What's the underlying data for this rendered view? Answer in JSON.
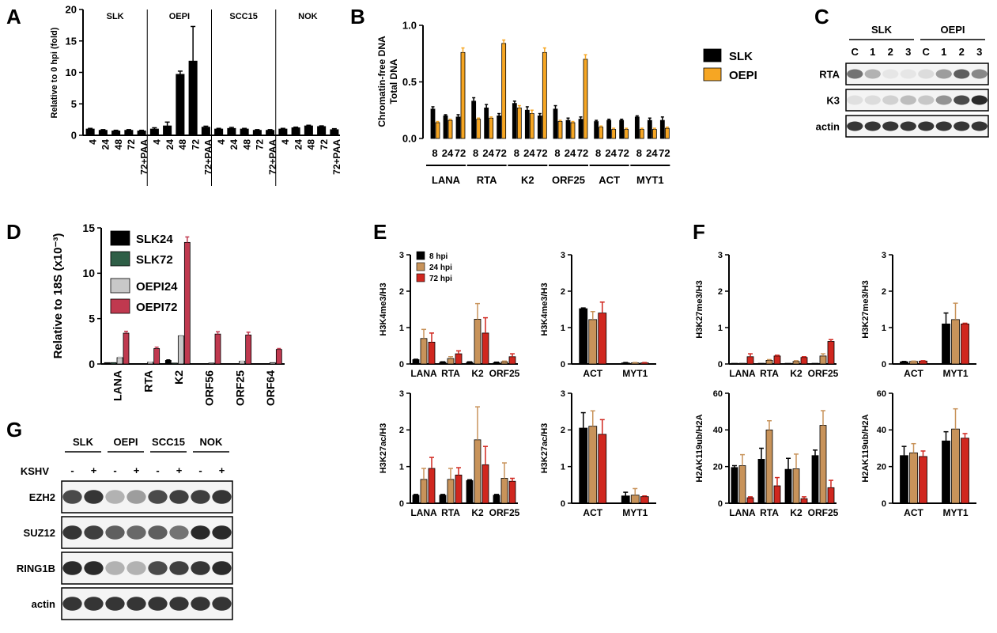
{
  "panel_labels": {
    "a": "A",
    "b": "B",
    "c": "C",
    "d": "D",
    "e": "E",
    "f": "F",
    "g": "G"
  },
  "chart_data": [
    {
      "id": "A",
      "type": "bar",
      "ylabel": "Relative to 0 hpi (fold)",
      "ylim": [
        0,
        20
      ],
      "yticks": [
        0,
        5,
        10,
        15,
        20
      ],
      "groups": [
        "SLK",
        "OEPI",
        "SCC15",
        "NOK"
      ],
      "categories": [
        "4",
        "24",
        "48",
        "72",
        "72+PAA"
      ],
      "series": [
        {
          "group": "SLK",
          "values": [
            1.0,
            0.8,
            0.7,
            0.8,
            0.7
          ],
          "errors": [
            0.1,
            0.1,
            0.1,
            0.1,
            0.1
          ]
        },
        {
          "group": "OEPI",
          "values": [
            1.0,
            1.5,
            9.7,
            11.8,
            1.3
          ],
          "errors": [
            0.2,
            0.6,
            0.5,
            5.5,
            0.15
          ]
        },
        {
          "group": "SCC15",
          "values": [
            1.0,
            1.1,
            1.0,
            0.8,
            0.8
          ],
          "errors": [
            0.1,
            0.15,
            0.1,
            0.1,
            0.1
          ]
        },
        {
          "group": "NOK",
          "values": [
            1.0,
            1.2,
            1.5,
            1.4,
            0.9
          ],
          "errors": [
            0.1,
            0.1,
            0.1,
            0.1,
            0.15
          ]
        }
      ],
      "colors": {
        "bar": "#000000"
      }
    },
    {
      "id": "B",
      "type": "bar",
      "ylabel": [
        "Chromatin-free DNA",
        "Total DNA"
      ],
      "ylim": [
        0,
        1.0
      ],
      "yticks": [
        "0.0",
        "0.5",
        "1.0"
      ],
      "genes": [
        "LANA",
        "RTA",
        "K2",
        "ORF25",
        "ACT",
        "MYT1"
      ],
      "timepoints": [
        "8",
        "24",
        "72"
      ],
      "series": [
        {
          "name": "SLK",
          "color": "#000000",
          "values": [
            [
              0.26,
              0.2,
              0.19
            ],
            [
              0.33,
              0.27,
              0.2
            ],
            [
              0.31,
              0.25,
              0.2
            ],
            [
              0.26,
              0.16,
              0.17
            ],
            [
              0.15,
              0.16,
              0.16
            ],
            [
              0.19,
              0.16,
              0.16
            ]
          ],
          "errors": [
            [
              0.02,
              0.01,
              0.02
            ],
            [
              0.03,
              0.03,
              0.02
            ],
            [
              0.02,
              0.03,
              0.02
            ],
            [
              0.03,
              0.02,
              0.02
            ],
            [
              0.01,
              0.01,
              0.01
            ],
            [
              0.01,
              0.02,
              0.03
            ]
          ]
        },
        {
          "name": "OEPI",
          "color": "#F6A623",
          "values": [
            [
              0.14,
              0.16,
              0.76
            ],
            [
              0.17,
              0.18,
              0.84
            ],
            [
              0.27,
              0.22,
              0.76
            ],
            [
              0.15,
              0.14,
              0.7
            ],
            [
              0.1,
              0.08,
              0.08
            ],
            [
              0.08,
              0.08,
              0.09
            ]
          ],
          "errors": [
            [
              0.01,
              0.01,
              0.04
            ],
            [
              0.01,
              0.01,
              0.03
            ],
            [
              0.02,
              0.03,
              0.04
            ],
            [
              0.01,
              0.01,
              0.04
            ],
            [
              0.01,
              0.01,
              0.01
            ],
            [
              0.01,
              0.01,
              0.01
            ]
          ]
        }
      ],
      "legend": [
        "SLK",
        "OEPI"
      ]
    },
    {
      "id": "D",
      "type": "bar",
      "ylabel": "Relative to 18S (x10⁻³)",
      "ylim": [
        0,
        15
      ],
      "yticks": [
        0,
        5,
        10,
        15
      ],
      "categories": [
        "LANA",
        "RTA",
        "K2",
        "ORF56",
        "ORF25",
        "ORF64"
      ],
      "series": [
        {
          "name": "SLK24",
          "color": "#000000",
          "values": [
            0.15,
            0.05,
            0.4,
            0.05,
            0.05,
            0.05
          ],
          "errors": [
            0,
            0,
            0.05,
            0,
            0,
            0
          ]
        },
        {
          "name": "SLK72",
          "color": "#2E5E46",
          "values": [
            0.15,
            0.05,
            0.1,
            0.05,
            0.05,
            0.05
          ],
          "errors": [
            0,
            0,
            0,
            0,
            0,
            0
          ]
        },
        {
          "name": "OEPI24",
          "color": "#C8C8C8",
          "values": [
            0.7,
            0.2,
            3.1,
            0.1,
            0.3,
            0.15
          ],
          "errors": [
            0.05,
            0.02,
            0.05,
            0,
            0.02,
            0
          ]
        },
        {
          "name": "OEPI72",
          "color": "#C0394F",
          "values": [
            3.4,
            1.7,
            13.4,
            3.3,
            3.2,
            1.6
          ],
          "errors": [
            0.2,
            0.15,
            0.6,
            0.25,
            0.3,
            0.1
          ]
        }
      ],
      "legend": [
        "SLK24",
        "SLK72",
        "OEPI24",
        "OEPI72"
      ]
    },
    {
      "id": "E1",
      "type": "bar",
      "ylabel": "H3K4me3/H3",
      "ylim": [
        0,
        3
      ],
      "yticks": [
        0,
        1,
        2,
        3
      ],
      "categories": [
        "LANA",
        "RTA",
        "K2",
        "ORF25"
      ],
      "series": [
        {
          "name": "8 hpi",
          "color": "#000000",
          "values": [
            0.12,
            0.05,
            0.05,
            0.04
          ],
          "errors": [
            0.01,
            0.01,
            0.01,
            0.01
          ]
        },
        {
          "name": "24 hpi",
          "color": "#C8935A",
          "values": [
            0.7,
            0.15,
            1.23,
            0.06
          ],
          "errors": [
            0.25,
            0.05,
            0.43,
            0.02
          ]
        },
        {
          "name": "72 hpi",
          "color": "#D0271F",
          "values": [
            0.6,
            0.28,
            0.85,
            0.2
          ],
          "errors": [
            0.25,
            0.08,
            0.42,
            0.08
          ]
        }
      ],
      "legend": [
        "8 hpi",
        "24 hpi",
        "72 hpi"
      ]
    },
    {
      "id": "E2",
      "type": "bar",
      "ylabel": "H3K4me3/H3",
      "ylim": [
        0,
        3
      ],
      "yticks": [
        0,
        1,
        2,
        3
      ],
      "categories": [
        "ACT",
        "MYT1"
      ],
      "series": [
        {
          "name": "8 hpi",
          "color": "#000000",
          "values": [
            1.52,
            0.03
          ],
          "errors": [
            0.02,
            0.01
          ]
        },
        {
          "name": "24 hpi",
          "color": "#C8935A",
          "values": [
            1.22,
            0.03
          ],
          "errors": [
            0.22,
            0.01
          ]
        },
        {
          "name": "72 hpi",
          "color": "#D0271F",
          "values": [
            1.4,
            0.03
          ],
          "errors": [
            0.3,
            0.01
          ]
        }
      ]
    },
    {
      "id": "E3",
      "type": "bar",
      "ylabel": "H3K27ac/H3",
      "ylim": [
        0,
        3
      ],
      "yticks": [
        0,
        1,
        2,
        3
      ],
      "categories": [
        "LANA",
        "RTA",
        "K2",
        "ORF25"
      ],
      "series": [
        {
          "name": "8 hpi",
          "color": "#000000",
          "values": [
            0.22,
            0.22,
            0.62,
            0.22
          ],
          "errors": [
            0.02,
            0.02,
            0.02,
            0.02
          ]
        },
        {
          "name": "24 hpi",
          "color": "#C8935A",
          "values": [
            0.65,
            0.65,
            1.73,
            0.68
          ],
          "errors": [
            0.3,
            0.3,
            0.9,
            0.42
          ]
        },
        {
          "name": "72 hpi",
          "color": "#D0271F",
          "values": [
            0.95,
            0.77,
            1.05,
            0.6
          ],
          "errors": [
            0.3,
            0.2,
            0.5,
            0.08
          ]
        }
      ]
    },
    {
      "id": "E4",
      "type": "bar",
      "ylabel": "H3K27ac/H3",
      "ylim": [
        0,
        3
      ],
      "yticks": [
        0,
        1,
        2,
        3
      ],
      "categories": [
        "ACT",
        "MYT1"
      ],
      "series": [
        {
          "name": "8 hpi",
          "color": "#000000",
          "values": [
            2.05,
            0.2
          ],
          "errors": [
            0.42,
            0.1
          ]
        },
        {
          "name": "24 hpi",
          "color": "#C8935A",
          "values": [
            2.1,
            0.22
          ],
          "errors": [
            0.42,
            0.18
          ]
        },
        {
          "name": "72 hpi",
          "color": "#D0271F",
          "values": [
            1.88,
            0.18
          ],
          "errors": [
            0.4,
            0.02
          ]
        }
      ]
    },
    {
      "id": "F1",
      "type": "bar",
      "ylabel": "H3K27me3/H3",
      "ylim": [
        0,
        3
      ],
      "yticks": [
        0,
        1,
        2,
        3
      ],
      "categories": [
        "LANA",
        "RTA",
        "K2",
        "ORF25"
      ],
      "series": [
        {
          "name": "8 hpi",
          "color": "#000000",
          "values": [
            0.02,
            0.02,
            0.02,
            0.02
          ],
          "errors": [
            0,
            0,
            0,
            0
          ]
        },
        {
          "name": "24 hpi",
          "color": "#C8935A",
          "values": [
            0.02,
            0.1,
            0.07,
            0.22
          ],
          "errors": [
            0,
            0.02,
            0.02,
            0.06
          ]
        },
        {
          "name": "72 hpi",
          "color": "#D0271F",
          "values": [
            0.2,
            0.22,
            0.18,
            0.62
          ],
          "errors": [
            0.08,
            0.02,
            0.02,
            0.05
          ]
        }
      ]
    },
    {
      "id": "F2",
      "type": "bar",
      "ylabel": "H3K27me3/H3",
      "ylim": [
        0,
        3
      ],
      "yticks": [
        0,
        1,
        2,
        3
      ],
      "categories": [
        "ACT",
        "MYT1"
      ],
      "series": [
        {
          "name": "8 hpi",
          "color": "#000000",
          "values": [
            0.06,
            1.1
          ],
          "errors": [
            0.01,
            0.3
          ]
        },
        {
          "name": "24 hpi",
          "color": "#C8935A",
          "values": [
            0.07,
            1.22
          ],
          "errors": [
            0.01,
            0.45
          ]
        },
        {
          "name": "72 hpi",
          "color": "#D0271F",
          "values": [
            0.08,
            1.1
          ],
          "errors": [
            0.01,
            0.02
          ]
        }
      ]
    },
    {
      "id": "F3",
      "type": "bar",
      "ylabel": "H2AK119ub/H2A",
      "ylim": [
        0,
        60
      ],
      "yticks": [
        0,
        20,
        40,
        60
      ],
      "categories": [
        "LANA",
        "RTA",
        "K2",
        "ORF25"
      ],
      "series": [
        {
          "name": "8 hpi",
          "color": "#000000",
          "values": [
            19.5,
            24,
            18.5,
            26
          ],
          "errors": [
            1,
            6,
            6,
            3
          ]
        },
        {
          "name": "24 hpi",
          "color": "#C8935A",
          "values": [
            20.5,
            40,
            18.8,
            42.5
          ],
          "errors": [
            6,
            5,
            8,
            8
          ]
        },
        {
          "name": "72 hpi",
          "color": "#D0271F",
          "values": [
            3,
            9.5,
            2.5,
            8.5
          ],
          "errors": [
            0.5,
            4.5,
            1,
            4
          ]
        }
      ]
    },
    {
      "id": "F4",
      "type": "bar",
      "ylabel": "H2AK119ub/H2A",
      "ylim": [
        0,
        60
      ],
      "yticks": [
        0,
        20,
        40,
        60
      ],
      "categories": [
        "ACT",
        "MYT1"
      ],
      "series": [
        {
          "name": "8 hpi",
          "color": "#000000",
          "values": [
            26,
            34
          ],
          "errors": [
            5,
            5
          ]
        },
        {
          "name": "24 hpi",
          "color": "#C8935A",
          "values": [
            27.5,
            40.5
          ],
          "errors": [
            5,
            11
          ]
        },
        {
          "name": "72 hpi",
          "color": "#D0271F",
          "values": [
            25.5,
            35.5
          ],
          "errors": [
            3,
            2.5
          ]
        }
      ]
    }
  ],
  "blot_c": {
    "groups": [
      "SLK",
      "OEPI"
    ],
    "lanes": [
      "C",
      "1",
      "2",
      "3",
      "C",
      "1",
      "2",
      "3"
    ],
    "rows": [
      "RTA",
      "K3",
      "actin"
    ],
    "intensity": {
      "RTA": [
        0.6,
        0.3,
        0.05,
        0.05,
        0.1,
        0.4,
        0.7,
        0.5
      ],
      "K3": [
        0.08,
        0.1,
        0.15,
        0.25,
        0.2,
        0.45,
        0.8,
        0.95
      ],
      "actin": [
        0.9,
        0.9,
        0.9,
        0.9,
        0.9,
        0.9,
        0.9,
        0.9
      ]
    }
  },
  "blot_g": {
    "groups": [
      "SLK",
      "OEPI",
      "SCC15",
      "NOK"
    ],
    "kshv_label": "KSHV",
    "lanes": [
      "-",
      "+",
      "-",
      "+",
      "-",
      "+",
      "-",
      "+"
    ],
    "rows": [
      "EZH2",
      "SUZ12",
      "RING1B",
      "actin"
    ],
    "intensity": {
      "EZH2": [
        0.8,
        0.9,
        0.3,
        0.4,
        0.8,
        0.85,
        0.85,
        0.9
      ],
      "SUZ12": [
        0.9,
        0.85,
        0.7,
        0.65,
        0.7,
        0.6,
        0.95,
        0.95
      ],
      "RING1B": [
        0.95,
        0.95,
        0.3,
        0.3,
        0.8,
        0.85,
        0.9,
        0.95
      ],
      "actin": [
        0.9,
        0.9,
        0.9,
        0.9,
        0.9,
        0.9,
        0.9,
        0.9
      ]
    }
  }
}
